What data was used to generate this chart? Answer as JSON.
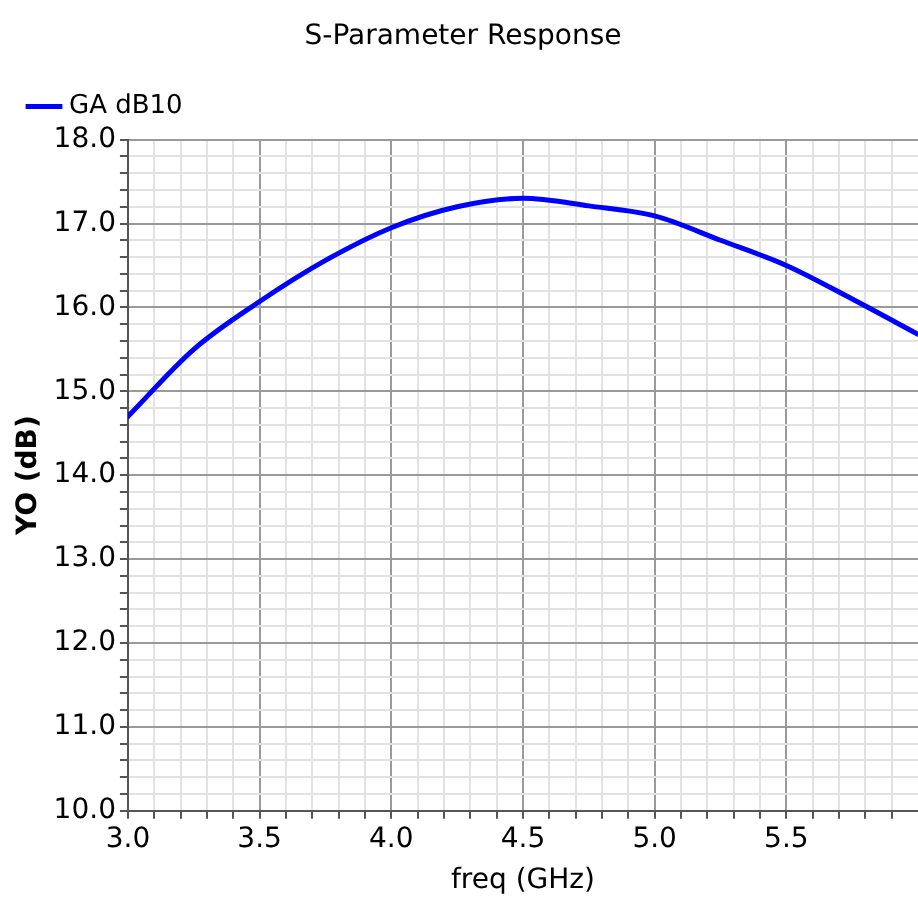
{
  "chart_data": {
    "type": "line",
    "title": "S-Parameter Response",
    "xlabel": "freq (GHz)",
    "ylabel": "YO (dB)",
    "x": [
      3.0,
      3.25,
      3.5,
      3.75,
      4.0,
      4.25,
      4.5,
      4.75,
      5.0,
      5.25,
      5.5,
      5.75,
      6.0
    ],
    "series": [
      {
        "name": "GA dB10",
        "color": "#0000ff",
        "values": [
          14.7,
          15.5,
          16.07,
          16.56,
          16.95,
          17.2,
          17.3,
          17.21,
          17.09,
          16.8,
          16.5,
          16.1,
          15.68
        ]
      }
    ],
    "xlim": [
      3.0,
      6.0
    ],
    "xticks": [
      {
        "value": 3,
        "label": "3.0"
      },
      {
        "value": 3.1,
        "label": null
      },
      {
        "value": 3.2,
        "label": null
      },
      {
        "value": 3.3,
        "label": null
      },
      {
        "value": 3.4,
        "label": null
      },
      3.5,
      {
        "value": 3.6,
        "label": null
      },
      {
        "value": 3.7,
        "label": null
      },
      {
        "value": 3.8,
        "label": null
      },
      {
        "value": 3.9,
        "label": null
      },
      {
        "value": 4.0,
        "label": "4.0"
      },
      {
        "value": 4.1,
        "label": null
      },
      {
        "value": 4.2,
        "label": null
      },
      {
        "value": 4.3,
        "label": null
      },
      {
        "value": 4.4,
        "label": null
      },
      4.5,
      {
        "value": 4.6,
        "label": null
      },
      {
        "value": 4.7,
        "label": null
      },
      {
        "value": 4.8,
        "label": null
      },
      {
        "value": 4.9,
        "label": null
      },
      {
        "value": 5.0,
        "label": "5.0"
      },
      {
        "value": 5.1,
        "label": null
      },
      {
        "value": 5.2,
        "label": null
      },
      {
        "value": 5.3,
        "label": null
      },
      {
        "value": 5.4,
        "label": null
      },
      5.5,
      {
        "value": 5.6,
        "label": null
      },
      {
        "value": 5.7,
        "label": null
      },
      {
        "value": 5.8,
        "label": null
      },
      {
        "value": 5.9,
        "label": null
      }
    ],
    "ylim": [
      10.0,
      18.0
    ],
    "yticks": [
      {
        "value": 10,
        "label": "10.0"
      },
      {
        "value": 10.2,
        "label": null
      },
      {
        "value": 10.4,
        "label": null
      },
      {
        "value": 10.6,
        "label": null
      },
      {
        "value": 10.8,
        "label": null
      },
      {
        "value": 11,
        "label": "11.0"
      },
      {
        "value": 11.2,
        "label": null
      },
      {
        "value": 11.4,
        "label": null
      },
      {
        "value": 11.6,
        "label": null
      },
      {
        "value": 11.8,
        "label": null
      },
      {
        "value": 12,
        "label": "12.0"
      },
      {
        "value": 12.2,
        "label": null
      },
      {
        "value": 12.4,
        "label": null
      },
      {
        "value": 12.6,
        "label": null
      },
      {
        "value": 12.8,
        "label": null
      },
      {
        "value": 13,
        "label": "13.0"
      },
      {
        "value": 13.2,
        "label": null
      },
      {
        "value": 13.4,
        "label": null
      },
      {
        "value": 13.6,
        "label": null
      },
      {
        "value": 13.8,
        "label": null
      },
      {
        "value": 14,
        "label": "14.0"
      },
      {
        "value": 14.2,
        "label": null
      },
      {
        "value": 14.4,
        "label": null
      },
      {
        "value": 14.6,
        "label": null
      },
      {
        "value": 14.8,
        "label": null
      },
      {
        "value": 15,
        "label": "15.0"
      },
      {
        "value": 15.2,
        "label": null
      },
      {
        "value": 15.4,
        "label": null
      },
      {
        "value": 15.6,
        "label": null
      },
      {
        "value": 15.8,
        "label": null
      },
      {
        "value": 16,
        "label": "16.0"
      },
      {
        "value": 16.2,
        "label": null
      },
      {
        "value": 16.4,
        "label": null
      },
      {
        "value": 16.6,
        "label": null
      },
      {
        "value": 16.8,
        "label": null
      },
      {
        "value": 17,
        "label": "17.0"
      },
      {
        "value": 17.2,
        "label": null
      },
      {
        "value": 17.4,
        "label": null
      },
      {
        "value": 17.6,
        "label": null
      },
      {
        "value": 17.8,
        "label": null
      },
      {
        "value": 18,
        "label": "18.0"
      }
    ],
    "grid": true,
    "legend": "top left",
    "marker": "none",
    "line_style": "solid"
  }
}
